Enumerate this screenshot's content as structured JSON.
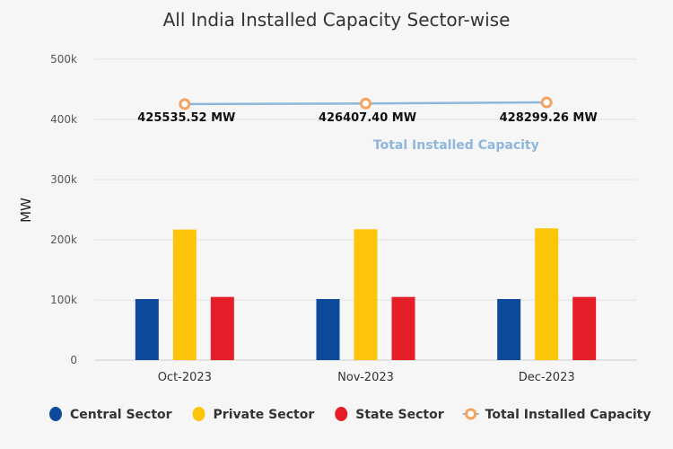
{
  "chart_data": {
    "type": "bar",
    "title": "All India Installed Capacity Sector-wise",
    "xlabel": "",
    "ylabel": "MW",
    "ylim": [
      0,
      500000
    ],
    "yticks": [
      0,
      100000,
      200000,
      300000,
      400000,
      500000
    ],
    "ytick_labels": [
      "0",
      "100k",
      "200k",
      "300k",
      "400k",
      "500k"
    ],
    "grid": true,
    "legend_position": "bottom",
    "categories": [
      "Oct-2023",
      "Nov-2023",
      "Dec-2023"
    ],
    "series": [
      {
        "name": "Central Sector",
        "type": "bar",
        "color": "#0d4a9c",
        "values": [
          101500,
          101500,
          101500
        ]
      },
      {
        "name": "Private Sector",
        "type": "bar",
        "color": "#fdc50a",
        "values": [
          217000,
          217500,
          219000
        ]
      },
      {
        "name": "State Sector",
        "type": "bar",
        "color": "#e61e28",
        "values": [
          105000,
          105000,
          105000
        ]
      },
      {
        "name": "Total Installed Capacity",
        "type": "line",
        "color": "#f4a460",
        "line_color": "#8fb6dc",
        "values": [
          425535.52,
          426407.4,
          428299.26
        ],
        "data_labels": [
          "425535.52 MW",
          "426407.40 MW",
          "428299.26 MW"
        ]
      }
    ]
  }
}
